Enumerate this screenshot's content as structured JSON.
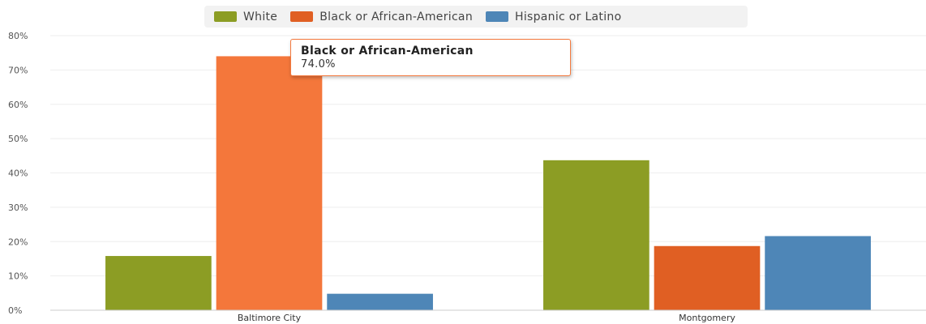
{
  "chart_data": {
    "type": "bar",
    "categories": [
      "Baltimore City",
      "Montgomery"
    ],
    "series": [
      {
        "name": "White",
        "values": [
          15.8,
          43.7
        ],
        "color": "#8c9d24"
      },
      {
        "name": "Black or African-American",
        "values": [
          74.0,
          18.7
        ],
        "color": "#e05f23",
        "highlight_color": "#f4773b"
      },
      {
        "name": "Hispanic or Latino",
        "values": [
          4.8,
          21.6
        ],
        "color": "#4e86b7"
      }
    ],
    "y_ticks": [
      "0%",
      "10%",
      "20%",
      "30%",
      "40%",
      "50%",
      "60%",
      "70%",
      "80%"
    ],
    "ylim": [
      0,
      80
    ],
    "grid": true,
    "legend_position": "top"
  },
  "tooltip": {
    "title": "Black or African-American",
    "value": "74.0%"
  }
}
